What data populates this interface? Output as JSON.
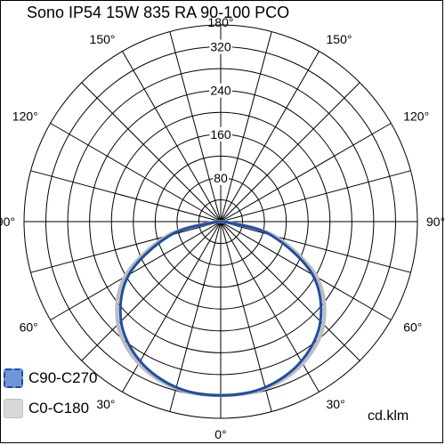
{
  "title": "Sono IP54 15W 835 RA 90-100 PCO",
  "unit": "cd.klm",
  "chart_data": {
    "type": "polar",
    "radial_ticks": [
      80,
      160,
      240,
      320
    ],
    "r_max": 360,
    "angle_labels_left": [
      "0°",
      "30°",
      "60°",
      "90°",
      "120°",
      "150°",
      "180°"
    ],
    "angle_labels_right": [
      "30°",
      "60°",
      "90°",
      "120°",
      "150°"
    ],
    "angle_step_deg": 15,
    "series": [
      {
        "name": "C90-C270",
        "color": "#1c4fa8",
        "fill": "#6f96d6",
        "dashed_swatch": true,
        "angles": [
          0,
          15,
          30,
          45,
          60,
          75,
          90
        ],
        "values": [
          318,
          314,
          295,
          258,
          194,
          95,
          6
        ]
      },
      {
        "name": "C0-C180",
        "color": "#bdbdbd",
        "fill": "#d8d8d8",
        "dashed_swatch": false,
        "angles": [
          0,
          15,
          30,
          45,
          60,
          75,
          90
        ],
        "values": [
          318,
          316,
          300,
          266,
          203,
          102,
          8
        ]
      }
    ]
  }
}
